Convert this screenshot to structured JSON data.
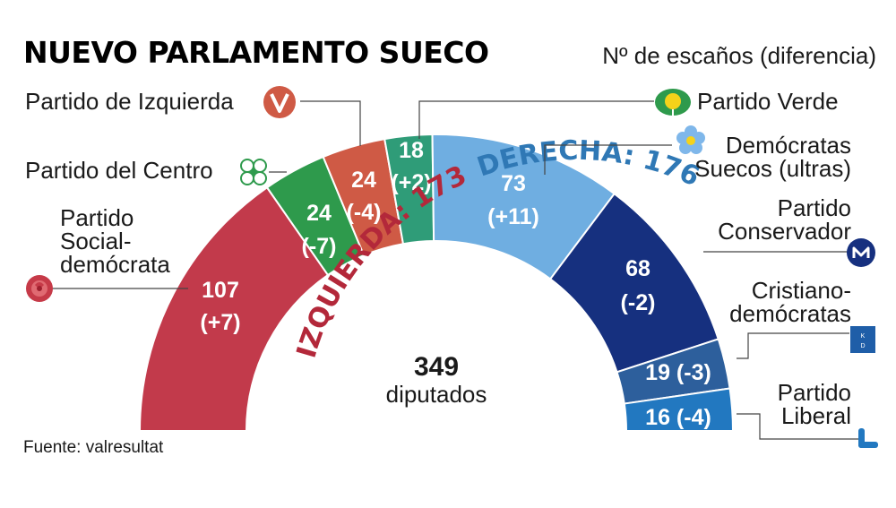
{
  "title": "NUEVO PARLAMENTO SUECO",
  "subtitle": "Nº de escaños (diferencia)",
  "source": "Fuente: valresultat",
  "total": {
    "value": "349",
    "label": "diputados"
  },
  "blocs": {
    "left": {
      "text": "IZQUIERDA: 173",
      "color": "#b3283a"
    },
    "right": {
      "text": "DERECHA: 176",
      "color": "#2f78b5"
    }
  },
  "colors": {
    "socialdemocrata": "#c23a4b",
    "centro": "#2e9a4c",
    "izquierda": "#cf5a45",
    "verde": "#2f9c78",
    "democratas_suecos": "#6faee1",
    "conservador": "#16307f",
    "cristianodemocratas": "#2d5f9c",
    "liberal": "#2278c0"
  },
  "icons": {
    "socialdemocrata": "red-rose-icon",
    "centro": "four-leaf-clover-icon",
    "izquierda": "v-logo-icon",
    "verde": "dandelion-icon",
    "democratas_suecos": "blue-flower-icon",
    "conservador": "m-logo-icon",
    "cristianodemocratas": "kd-logo-icon",
    "liberal": "l-logo-icon"
  },
  "chart_data": {
    "type": "hemicycle",
    "total_seats": 349,
    "series": [
      {
        "name": "Partido Social-demócrata",
        "seats": 107,
        "change": 7,
        "value_text": "107",
        "change_text": "(+7)",
        "bloc": "left"
      },
      {
        "name": "Partido del Centro",
        "seats": 24,
        "change": -7,
        "value_text": "24",
        "change_text": "(-7)",
        "bloc": "left"
      },
      {
        "name": "Partido de Izquierda",
        "seats": 24,
        "change": -4,
        "value_text": "24",
        "change_text": "(-4)",
        "bloc": "left"
      },
      {
        "name": "Partido Verde",
        "seats": 18,
        "change": 2,
        "value_text": "18",
        "change_text": "(+2)",
        "bloc": "left"
      },
      {
        "name": "Demócratas Suecos (ultras)",
        "seats": 73,
        "change": 11,
        "value_text": "73",
        "change_text": "(+11)",
        "bloc": "right"
      },
      {
        "name": "Partido Conservador",
        "seats": 68,
        "change": -2,
        "value_text": "68",
        "change_text": "(-2)",
        "bloc": "right"
      },
      {
        "name": "Cristiano-demócratas",
        "seats": 19,
        "change": -3,
        "value_text": "19 (-3)",
        "bloc": "right"
      },
      {
        "name": "Partido Liberal",
        "seats": 16,
        "change": -4,
        "value_text": "16 (-4)",
        "bloc": "right"
      }
    ]
  },
  "party_labels": {
    "socialdemocrata": [
      "Partido",
      "Social-",
      "demócrata"
    ],
    "centro": [
      "Partido del Centro"
    ],
    "izquierda": [
      "Partido de Izquierda"
    ],
    "verde": [
      "Partido Verde"
    ],
    "democratas_suecos": [
      "Demócratas",
      "Suecos (ultras)"
    ],
    "conservador": [
      "Partido",
      "Conservador"
    ],
    "cristianodemocratas": [
      "Cristiano-",
      "demócratas"
    ],
    "liberal": [
      "Partido",
      "Liberal"
    ]
  }
}
